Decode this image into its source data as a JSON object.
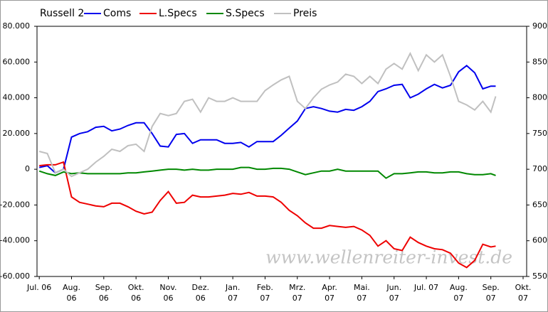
{
  "chart_data": {
    "type": "line",
    "title": "Russell 2",
    "watermark": "www.wellenreiter-invest.de",
    "x": [
      0,
      0.25,
      0.5,
      0.75,
      1,
      1.25,
      1.5,
      1.75,
      2,
      2.25,
      2.5,
      2.75,
      3,
      3.25,
      3.5,
      3.75,
      4,
      4.25,
      4.5,
      4.75,
      5,
      5.25,
      5.5,
      5.75,
      6,
      6.25,
      6.5,
      6.75,
      7,
      7.25,
      7.5,
      7.75,
      8,
      8.25,
      8.5,
      8.75,
      9,
      9.25,
      9.5,
      9.75,
      10,
      10.25,
      10.5,
      10.75,
      11,
      11.25,
      11.5,
      11.75,
      12,
      12.25,
      12.5,
      12.75,
      13,
      13.25,
      13.5,
      13.75,
      14,
      14.15
    ],
    "xlim": [
      -0.07,
      15.11
    ],
    "xticks": [
      {
        "value": 0,
        "label": "Jul. 06"
      },
      {
        "value": 1,
        "label": "Aug. 06"
      },
      {
        "value": 2,
        "label": "Sep. 06"
      },
      {
        "value": 3,
        "label": "Okt. 06"
      },
      {
        "value": 4,
        "label": "Nov. 06"
      },
      {
        "value": 5,
        "label": "Dez. 06"
      },
      {
        "value": 6,
        "label": "Jan. 07"
      },
      {
        "value": 7,
        "label": "Feb. 07"
      },
      {
        "value": 8,
        "label": "Mrz. 07"
      },
      {
        "value": 9,
        "label": "Apr. 07"
      },
      {
        "value": 10,
        "label": "Mai. 07"
      },
      {
        "value": 11,
        "label": "Jun. 07"
      },
      {
        "value": 12,
        "label": "Jul. 07"
      },
      {
        "value": 13,
        "label": "Aug. 07"
      },
      {
        "value": 14,
        "label": "Sep. 07"
      },
      {
        "value": 15,
        "label": "Okt. 07"
      }
    ],
    "ylim": [
      -60000,
      80000
    ],
    "yticks": [
      {
        "value": -60000,
        "label": "-60.000"
      },
      {
        "value": -40000,
        "label": "-40.000"
      },
      {
        "value": -20000,
        "label": "-20.000"
      },
      0,
      {
        "value": 20000,
        "label": "20.000"
      },
      {
        "value": 40000,
        "label": "40.000"
      },
      {
        "value": 60000,
        "label": "60.000"
      },
      {
        "value": 80000,
        "label": "80.000"
      }
    ],
    "y2lim": [
      550,
      900
    ],
    "y2ticks": [
      550,
      600,
      650,
      700,
      750,
      800,
      850,
      900
    ],
    "series": [
      {
        "name": "Coms",
        "color": "#0000ee",
        "values": [
          1000,
          2000,
          -2000,
          0,
          18000,
          20000,
          21000,
          23500,
          24000,
          21500,
          22500,
          24500,
          26000,
          26000,
          20000,
          13000,
          12500,
          19500,
          20000,
          14500,
          16500,
          16500,
          16500,
          14500,
          14500,
          15000,
          12500,
          15500,
          15500,
          15500,
          19000,
          23000,
          27000,
          34000,
          35000,
          34000,
          32500,
          32000,
          33500,
          33000,
          35000,
          38000,
          43500,
          45000,
          47000,
          47500,
          40000,
          42000,
          45000,
          47500,
          45500,
          47000,
          54500,
          58000,
          54000,
          45000,
          46500,
          46500
        ]
      },
      {
        "name": "L.Specs",
        "color": "#ee0000",
        "values": [
          2000,
          2500,
          2500,
          4000,
          -15500,
          -18500,
          -19500,
          -20500,
          -21000,
          -19000,
          -19000,
          -21000,
          -23500,
          -25000,
          -24000,
          -17500,
          -12500,
          -19000,
          -18500,
          -14500,
          -15500,
          -15500,
          -15000,
          -14500,
          -13500,
          -14000,
          -13000,
          -15000,
          -15000,
          -15500,
          -18500,
          -23000,
          -26000,
          -30000,
          -33000,
          -33000,
          -31500,
          -32000,
          -32500,
          -32000,
          -34000,
          -37000,
          -43000,
          -40000,
          -44500,
          -45500,
          -38000,
          -41000,
          -43000,
          -44500,
          -45000,
          -47000,
          -52500,
          -55000,
          -51000,
          -42000,
          -43500,
          -43000
        ]
      },
      {
        "name": "S.Specs",
        "color": "#008800",
        "values": [
          -1000,
          -2500,
          -3500,
          -1500,
          -2500,
          -2000,
          -2500,
          -2500,
          -2500,
          -2500,
          -2500,
          -2000,
          -2000,
          -1500,
          -1000,
          -500,
          0,
          0,
          -500,
          0,
          -500,
          -500,
          0,
          0,
          0,
          1000,
          1000,
          0,
          0,
          500,
          500,
          0,
          -1500,
          -3000,
          -2000,
          -1000,
          -1000,
          0,
          -1000,
          -1000,
          -1000,
          -1000,
          -1000,
          -5000,
          -2500,
          -2500,
          -2000,
          -1500,
          -1500,
          -2000,
          -2000,
          -1500,
          -1500,
          -2500,
          -3000,
          -3000,
          -2500,
          -3500
        ]
      },
      {
        "name": "Preis",
        "color": "#c0c0c0",
        "axis": "y2",
        "values": [
          725,
          722,
          695,
          700,
          690,
          695,
          700,
          710,
          718,
          728,
          725,
          733,
          735,
          725,
          760,
          778,
          775,
          778,
          795,
          798,
          780,
          800,
          795,
          795,
          800,
          795,
          795,
          795,
          810,
          818,
          825,
          830,
          795,
          785,
          800,
          812,
          818,
          822,
          833,
          830,
          820,
          830,
          820,
          840,
          848,
          840,
          862,
          838,
          860,
          850,
          860,
          830,
          795,
          790,
          783,
          795,
          780,
          802
        ]
      }
    ]
  }
}
